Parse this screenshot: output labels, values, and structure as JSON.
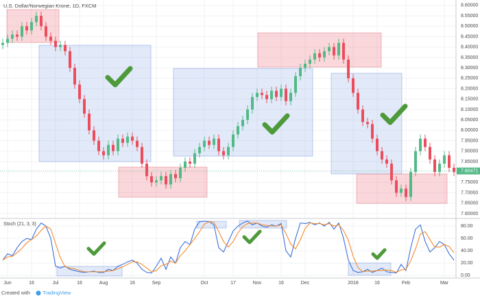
{
  "chart_data": [
    {
      "type": "candlestick",
      "title": "U.S. Dollar/Norwegian Krone, 1D, FXCM",
      "categories": [
        null,
        "Jun",
        null,
        null,
        null,
        null,
        "16",
        null,
        null,
        null,
        null,
        "Jul",
        null,
        null,
        null,
        null,
        "16",
        null,
        null,
        null,
        null,
        "Aug",
        null,
        null,
        null,
        null,
        null,
        "16",
        null,
        null,
        null,
        null,
        "Sep",
        null,
        null,
        null,
        null,
        null,
        null,
        null,
        null,
        null,
        "Oct",
        null,
        null,
        null,
        null,
        null,
        "17",
        null,
        null,
        null,
        null,
        "Nov",
        null,
        null,
        null,
        null,
        "16",
        null,
        null,
        null,
        null,
        "Dec",
        null,
        null,
        null,
        null,
        null,
        null,
        null,
        null,
        null,
        "2018",
        null,
        null,
        null,
        null,
        "16",
        null,
        null,
        null,
        null,
        null,
        "Feb",
        null,
        null,
        null,
        null,
        null,
        null,
        null,
        "Mar",
        null,
        null
      ],
      "open": [
        8.41,
        8.42,
        8.44,
        8.46,
        8.45,
        8.5,
        8.48,
        8.52,
        8.55,
        8.5,
        8.45,
        8.43,
        8.4,
        8.41,
        8.38,
        8.3,
        8.22,
        8.15,
        8.08,
        8.0,
        7.95,
        7.9,
        7.88,
        7.93,
        7.9,
        7.96,
        7.94,
        7.97,
        7.95,
        7.92,
        7.84,
        7.78,
        7.75,
        7.76,
        7.78,
        7.74,
        7.79,
        7.77,
        7.82,
        7.85,
        7.84,
        7.89,
        7.92,
        7.95,
        7.93,
        7.96,
        7.9,
        7.88,
        7.92,
        7.98,
        8.02,
        8.05,
        8.1,
        8.16,
        8.18,
        8.17,
        8.15,
        8.19,
        8.16,
        8.2,
        8.14,
        8.18,
        8.26,
        8.3,
        8.32,
        8.34,
        8.37,
        8.35,
        8.38,
        8.4,
        8.36,
        8.42,
        8.34,
        8.25,
        8.18,
        8.1,
        8.04,
        8.03,
        7.96,
        7.9,
        7.86,
        7.84,
        7.76,
        7.7,
        7.72,
        7.68,
        7.8,
        7.9,
        7.96,
        7.92,
        7.86,
        7.8,
        7.84,
        7.88,
        7.82
      ],
      "high": [
        8.44,
        8.46,
        8.48,
        8.48,
        8.52,
        8.52,
        8.54,
        8.57,
        8.57,
        8.52,
        8.47,
        8.45,
        8.43,
        8.43,
        8.4,
        8.32,
        8.24,
        8.17,
        8.1,
        8.02,
        7.97,
        7.92,
        7.95,
        7.95,
        7.98,
        7.98,
        7.99,
        7.99,
        7.97,
        7.94,
        7.86,
        7.8,
        7.78,
        7.8,
        7.8,
        7.81,
        7.81,
        7.84,
        7.87,
        7.87,
        7.91,
        7.94,
        7.97,
        7.97,
        7.98,
        7.98,
        7.92,
        7.94,
        8.0,
        8.04,
        8.07,
        8.12,
        8.18,
        8.2,
        8.2,
        8.19,
        8.21,
        8.21,
        8.22,
        8.22,
        8.2,
        8.28,
        8.32,
        8.34,
        8.36,
        8.39,
        8.39,
        8.4,
        8.42,
        8.42,
        8.44,
        8.44,
        8.36,
        8.27,
        8.2,
        8.12,
        8.06,
        8.05,
        7.98,
        7.92,
        7.88,
        7.86,
        7.78,
        7.74,
        7.74,
        7.82,
        7.92,
        7.98,
        7.98,
        7.94,
        7.88,
        7.86,
        7.9,
        7.9,
        7.84
      ],
      "low": [
        8.39,
        8.4,
        8.42,
        8.43,
        8.43,
        8.46,
        8.46,
        8.5,
        8.48,
        8.43,
        8.41,
        8.38,
        8.38,
        8.36,
        8.28,
        8.2,
        8.13,
        8.06,
        7.98,
        7.93,
        7.88,
        7.86,
        7.86,
        7.88,
        7.88,
        7.92,
        7.92,
        7.93,
        7.9,
        7.82,
        7.76,
        7.73,
        7.73,
        7.74,
        7.72,
        7.72,
        7.75,
        7.75,
        7.8,
        7.82,
        7.82,
        7.87,
        7.9,
        7.91,
        7.91,
        7.88,
        7.86,
        7.86,
        7.9,
        7.96,
        8.0,
        8.03,
        8.08,
        8.14,
        8.15,
        8.13,
        8.13,
        8.14,
        8.14,
        8.12,
        8.12,
        8.16,
        8.24,
        8.28,
        8.3,
        8.32,
        8.33,
        8.33,
        8.36,
        8.34,
        8.34,
        8.32,
        8.23,
        8.16,
        8.08,
        8.02,
        8.01,
        7.94,
        7.88,
        7.84,
        7.82,
        7.74,
        7.68,
        7.68,
        7.66,
        7.66,
        7.78,
        7.88,
        7.9,
        7.84,
        7.78,
        7.78,
        7.82,
        7.8,
        7.78
      ],
      "close": [
        8.42,
        8.44,
        8.46,
        8.45,
        8.5,
        8.48,
        8.52,
        8.55,
        8.5,
        8.45,
        8.43,
        8.4,
        8.41,
        8.38,
        8.3,
        8.22,
        8.15,
        8.08,
        8.0,
        7.95,
        7.9,
        7.88,
        7.93,
        7.9,
        7.96,
        7.94,
        7.97,
        7.95,
        7.92,
        7.84,
        7.78,
        7.75,
        7.76,
        7.78,
        7.74,
        7.79,
        7.77,
        7.82,
        7.85,
        7.84,
        7.89,
        7.92,
        7.95,
        7.93,
        7.96,
        7.9,
        7.88,
        7.92,
        7.98,
        8.02,
        8.05,
        8.1,
        8.16,
        8.18,
        8.17,
        8.15,
        8.19,
        8.16,
        8.2,
        8.14,
        8.18,
        8.26,
        8.3,
        8.32,
        8.34,
        8.37,
        8.35,
        8.38,
        8.4,
        8.36,
        8.42,
        8.34,
        8.25,
        8.18,
        8.1,
        8.04,
        8.03,
        7.96,
        7.9,
        7.86,
        7.84,
        7.76,
        7.7,
        7.72,
        7.68,
        7.8,
        7.9,
        7.96,
        7.92,
        7.86,
        7.8,
        7.84,
        7.88,
        7.82,
        7.8
      ],
      "up_color": "#53b987",
      "down_color": "#eb4d5c",
      "last_price": 7.80471,
      "ylim": [
        7.58,
        8.626
      ],
      "yticks": [
        {
          "value": 7.6,
          "label": "7.60000"
        },
        {
          "value": 7.65,
          "label": "7.65000"
        },
        {
          "value": 7.7,
          "label": "7.70000"
        },
        {
          "value": 7.75,
          "label": "7.75000"
        },
        {
          "value": 7.8,
          "label": "7.80000"
        },
        {
          "value": 7.85,
          "label": "7.85000"
        },
        {
          "value": 7.9,
          "label": "7.90000"
        },
        {
          "value": 7.95,
          "label": "7.95000"
        },
        {
          "value": 8.0,
          "label": "8.00000"
        },
        {
          "value": 8.05,
          "label": "8.05000"
        },
        {
          "value": 8.1,
          "label": "8.10000"
        },
        {
          "value": 8.15,
          "label": "8.15000"
        },
        {
          "value": 8.2,
          "label": "8.20000"
        },
        {
          "value": 8.25,
          "label": "8.25000"
        },
        {
          "value": 8.3,
          "label": "8.30000"
        },
        {
          "value": 8.35,
          "label": "8.35000"
        },
        {
          "value": 8.4,
          "label": "8.40000"
        },
        {
          "value": 8.45,
          "label": "8.45000"
        },
        {
          "value": 8.5,
          "label": "8.50000"
        },
        {
          "value": 8.55,
          "label": "8.55000"
        },
        {
          "value": 8.6,
          "label": "8.60000"
        }
      ],
      "grid": true
    },
    {
      "type": "line",
      "title": "Stoch (21, 3, 3)",
      "series": [
        {
          "color": "#3a6fd8",
          "values": [
            25,
            35,
            32,
            45,
            55,
            60,
            58,
            75,
            85,
            80,
            60,
            15,
            12,
            15,
            10,
            8,
            6,
            5,
            6,
            7,
            5,
            5,
            10,
            8,
            15,
            18,
            22,
            25,
            20,
            10,
            5,
            4,
            15,
            28,
            10,
            30,
            20,
            45,
            55,
            50,
            75,
            87,
            88,
            87,
            82,
            45,
            38,
            55,
            72,
            80,
            85,
            88,
            82,
            85,
            80,
            78,
            82,
            80,
            84,
            40,
            30,
            60,
            85,
            84,
            86,
            82,
            85,
            80,
            86,
            75,
            85,
            60,
            25,
            8,
            5,
            6,
            10,
            5,
            8,
            12,
            6,
            5,
            4,
            18,
            8,
            45,
            75,
            82,
            55,
            38,
            45,
            55,
            50,
            35,
            25
          ]
        },
        {
          "color": "#f58a2b",
          "values": [
            25,
            30,
            31,
            37,
            44,
            53,
            58,
            64,
            73,
            80,
            75,
            52,
            29,
            14,
            12,
            11,
            8,
            6,
            6,
            6,
            6,
            6,
            7,
            8,
            11,
            14,
            18,
            22,
            22,
            18,
            12,
            6,
            8,
            16,
            18,
            23,
            20,
            32,
            40,
            50,
            60,
            71,
            83,
            87,
            86,
            71,
            55,
            46,
            55,
            69,
            79,
            84,
            85,
            85,
            82,
            81,
            80,
            80,
            82,
            68,
            51,
            43,
            58,
            76,
            85,
            84,
            84,
            82,
            84,
            80,
            82,
            73,
            57,
            31,
            13,
            6,
            7,
            7,
            8,
            8,
            9,
            8,
            5,
            9,
            10,
            24,
            43,
            67,
            71,
            58,
            46,
            46,
            50,
            47,
            37
          ]
        }
      ],
      "ylim": [
        -3,
        89
      ],
      "yticks": [
        {
          "value": 0,
          "label": "0.00"
        },
        {
          "value": 20,
          "label": "20.00"
        },
        {
          "value": 40,
          "label": "40.00"
        },
        {
          "value": 60,
          "label": "60.00"
        },
        {
          "value": 80,
          "label": "80.00"
        }
      ],
      "grid": true
    }
  ],
  "footer": {
    "text": "Created with",
    "brand": "TradingView"
  }
}
